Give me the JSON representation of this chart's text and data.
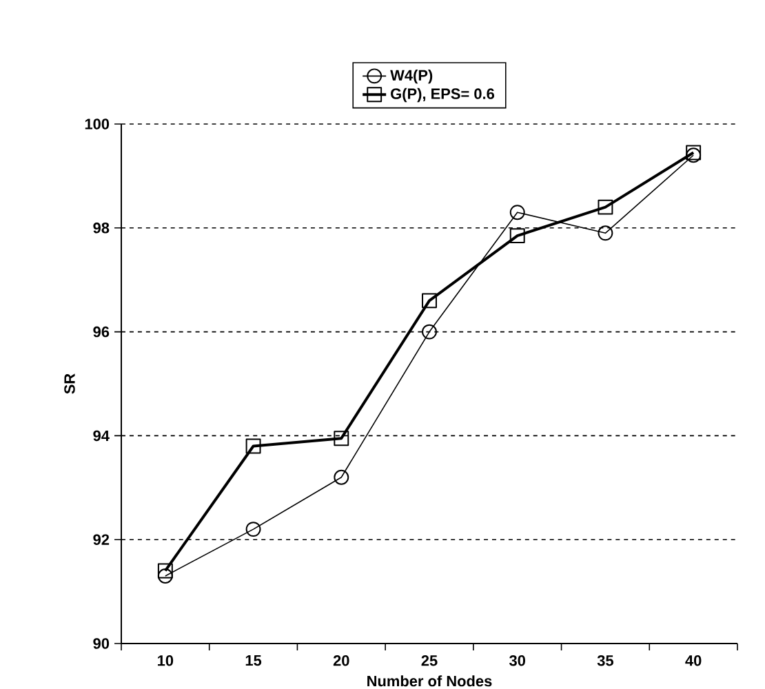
{
  "chart_data": {
    "type": "line",
    "xlabel": "Number of Nodes",
    "ylabel": "SR",
    "categories": [
      "10",
      "15",
      "20",
      "25",
      "30",
      "35",
      "40"
    ],
    "series": [
      {
        "name": "W4(P)",
        "color": "#000000",
        "marker": "circle",
        "values": [
          91.3,
          92.2,
          93.2,
          96.0,
          98.3,
          97.9,
          99.4
        ]
      },
      {
        "name": "G(P), EPS= 0.6",
        "color": "#000000",
        "marker": "square",
        "values": [
          91.4,
          93.8,
          93.95,
          96.6,
          97.85,
          98.4,
          99.45
        ]
      }
    ],
    "ylim": [
      90,
      100
    ],
    "yticks": [
      90,
      92,
      94,
      96,
      98,
      100
    ],
    "grid": "y",
    "legend": "top",
    "line_style": "solid"
  }
}
